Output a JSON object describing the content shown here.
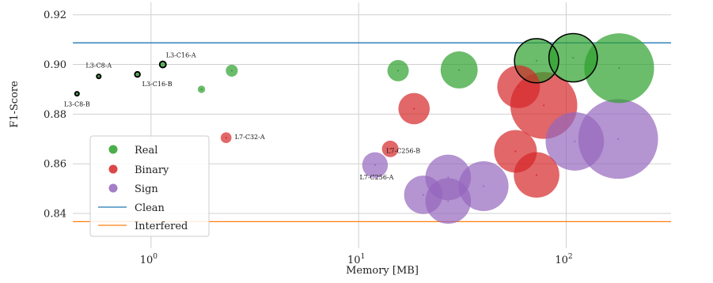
{
  "chart_data": {
    "type": "scatter",
    "xlabel": "Memory [MB]",
    "ylabel": "F1-Score",
    "xscale": "log",
    "xlim": [
      0.42,
      320
    ],
    "ylim": [
      0.826,
      0.925
    ],
    "grid": true,
    "legend_position": "bottom-left",
    "x_ticks": [
      {
        "base": "10",
        "exp": "0",
        "value": 1
      },
      {
        "base": "10",
        "exp": "1",
        "value": 10
      },
      {
        "base": "10",
        "exp": "2",
        "value": 100
      }
    ],
    "y_ticks": [
      "0.84",
      "0.86",
      "0.88",
      "0.90",
      "0.92"
    ],
    "reference_lines": [
      {
        "name": "Clean",
        "y": 0.9087,
        "color": "#1f77b4"
      },
      {
        "name": "Interfered",
        "y": 0.8367,
        "color": "#ff7f0e"
      }
    ],
    "series": [
      {
        "name": "Real",
        "color": "#2ca02c",
        "points": [
          {
            "x": 0.44,
            "y": 0.8882,
            "size": 0.14,
            "outline": true,
            "label": "L3-C8-B"
          },
          {
            "x": 0.56,
            "y": 0.8952,
            "size": 0.14,
            "outline": true,
            "label": "L3-C8-A"
          },
          {
            "x": 0.86,
            "y": 0.896,
            "size": 0.18,
            "outline": true,
            "label": "L3-C16-B"
          },
          {
            "x": 1.14,
            "y": 0.9,
            "size": 0.22,
            "outline": true,
            "label": "L3-C16-A"
          },
          {
            "x": 1.75,
            "y": 0.89,
            "size": 0.26
          },
          {
            "x": 2.45,
            "y": 0.8975,
            "size": 0.42
          },
          {
            "x": 15.5,
            "y": 0.8975,
            "size": 0.75
          },
          {
            "x": 30.5,
            "y": 0.8978,
            "size": 1.3
          },
          {
            "x": 72,
            "y": 0.9015,
            "size": 1.55,
            "outline": true
          },
          {
            "x": 108,
            "y": 0.9027,
            "size": 1.7,
            "outline": true
          },
          {
            "x": 180,
            "y": 0.8985,
            "size": 2.45
          }
        ]
      },
      {
        "name": "Binary",
        "color": "#d62728",
        "points": [
          {
            "x": 2.3,
            "y": 0.8705,
            "size": 0.38,
            "label": "L7-C32-A"
          },
          {
            "x": 14.2,
            "y": 0.866,
            "size": 0.58,
            "label": "L7-C256-B"
          },
          {
            "x": 18.5,
            "y": 0.8822,
            "size": 1.1
          },
          {
            "x": 57,
            "y": 0.865,
            "size": 1.5
          },
          {
            "x": 59,
            "y": 0.891,
            "size": 1.5
          },
          {
            "x": 72,
            "y": 0.8555,
            "size": 1.6
          },
          {
            "x": 78,
            "y": 0.8835,
            "size": 2.35
          }
        ]
      },
      {
        "name": "Sign",
        "color": "#9467bd",
        "points": [
          {
            "x": 12,
            "y": 0.8595,
            "size": 0.9,
            "label": "L7-C256-A"
          },
          {
            "x": 20.5,
            "y": 0.8475,
            "size": 1.35
          },
          {
            "x": 27,
            "y": 0.8545,
            "size": 1.6
          },
          {
            "x": 27,
            "y": 0.845,
            "size": 1.6
          },
          {
            "x": 40,
            "y": 0.851,
            "size": 1.75
          },
          {
            "x": 110,
            "y": 0.869,
            "size": 2.05
          },
          {
            "x": 178,
            "y": 0.87,
            "size": 2.8
          }
        ]
      }
    ]
  }
}
